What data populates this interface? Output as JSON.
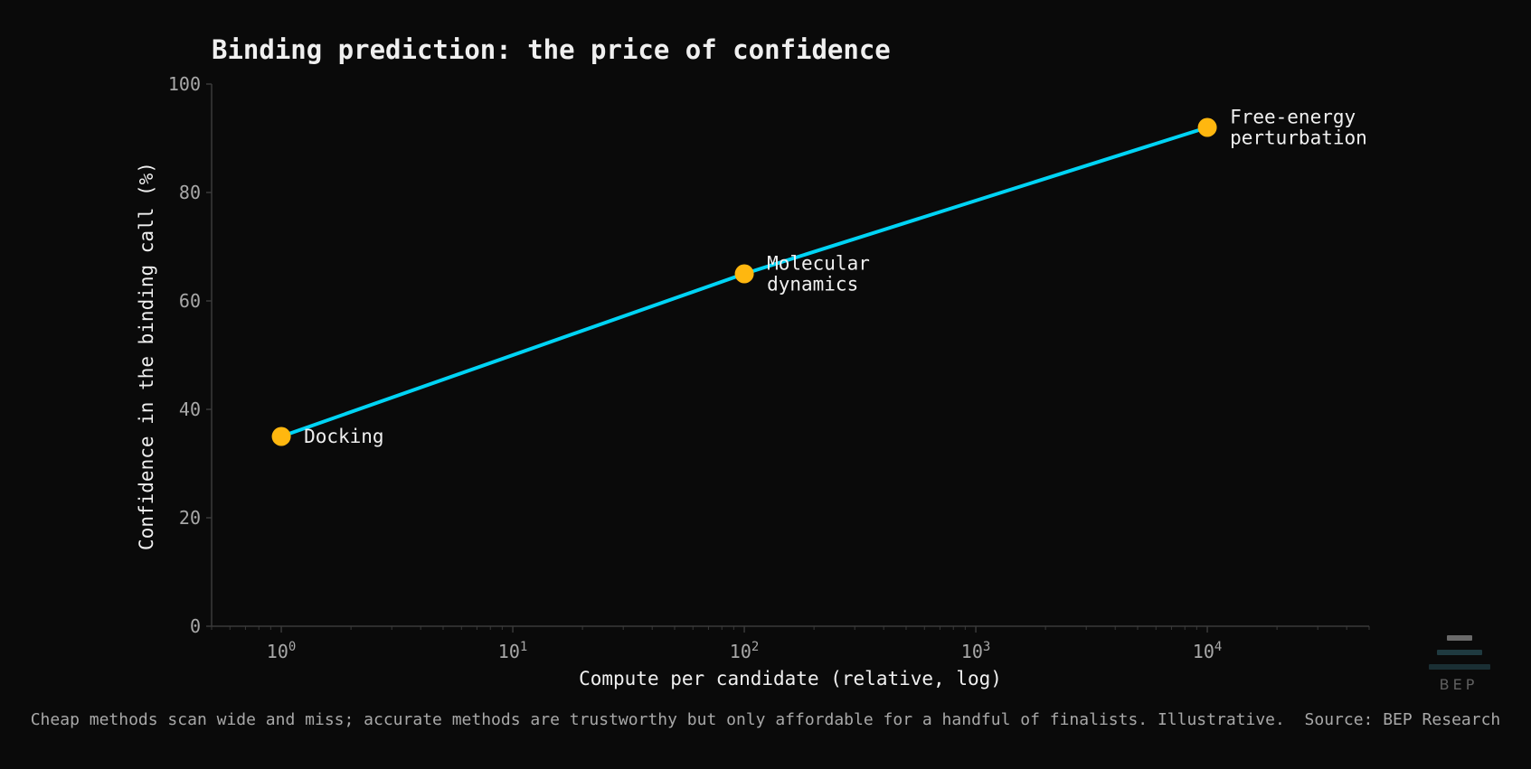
{
  "chart_data": {
    "type": "line",
    "title": "Binding prediction: the price of confidence",
    "xlabel": "Compute per candidate (relative, log)",
    "ylabel": "Confidence in the binding call (%)",
    "xscale": "log",
    "xlim": [
      0.5,
      50000
    ],
    "ylim": [
      0,
      100
    ],
    "x_ticks": [
      {
        "value": 1,
        "base": "10",
        "exp": "0"
      },
      {
        "value": 10,
        "base": "10",
        "exp": "1"
      },
      {
        "value": 100,
        "base": "10",
        "exp": "2"
      },
      {
        "value": 1000,
        "base": "10",
        "exp": "3"
      },
      {
        "value": 10000,
        "base": "10",
        "exp": "4"
      }
    ],
    "y_ticks": [
      "0",
      "20",
      "40",
      "60",
      "80",
      "100"
    ],
    "grid": false,
    "series": [
      {
        "points": [
          {
            "x": 1,
            "y": 35,
            "label": [
              "Docking"
            ]
          },
          {
            "x": 100,
            "y": 65,
            "label": [
              "Molecular",
              "dynamics"
            ]
          },
          {
            "x": 10000,
            "y": 92,
            "label": [
              "Free-energy",
              "perturbation"
            ]
          }
        ]
      }
    ],
    "colors": {
      "line": "#00d4f5",
      "marker": "#ffb70f",
      "axis": "#3a3a3a",
      "tick_text": "#a8a8a8",
      "text": "#f0f0f0"
    },
    "caption": "Cheap methods scan wide and miss; accurate methods are trustworthy but only affordable for a handful of finalists. Illustrative.  Source: BEP Research"
  },
  "logo": {
    "text": "BEP"
  }
}
